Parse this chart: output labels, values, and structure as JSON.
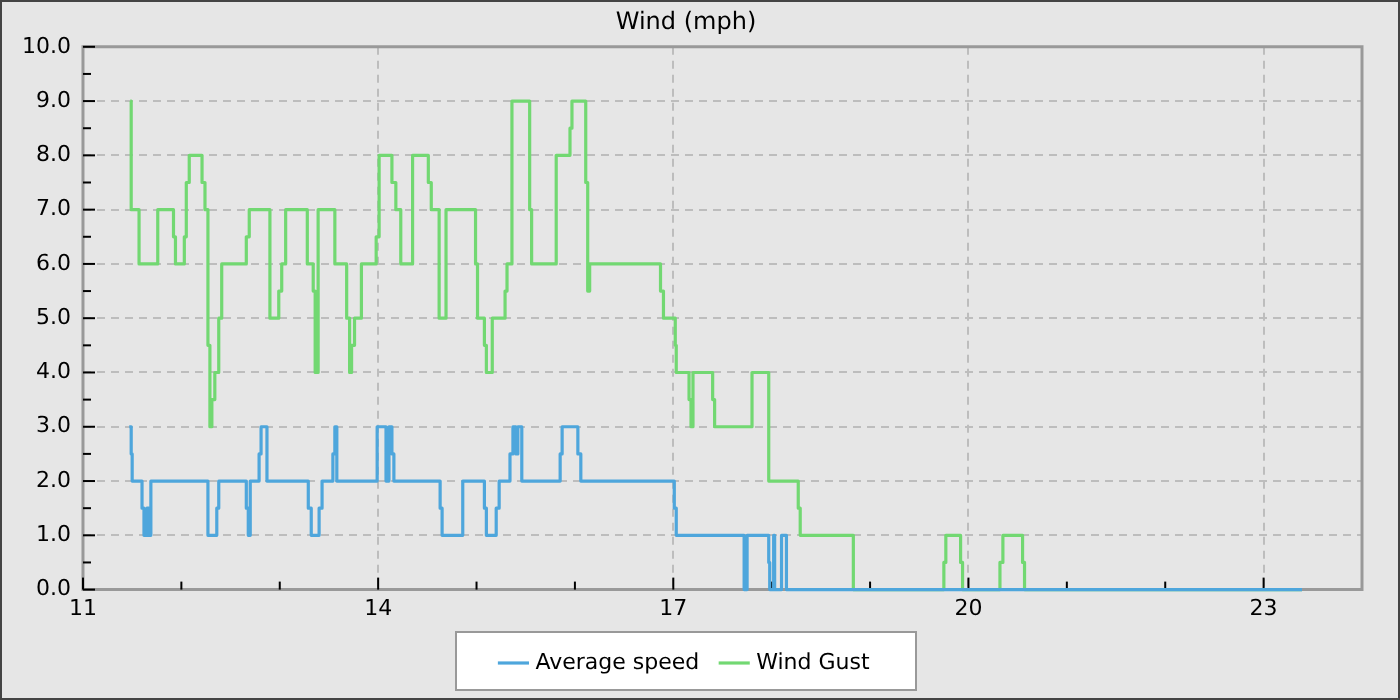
{
  "chart_data": {
    "type": "step",
    "title": "Wind (mph)",
    "xlim": [
      11,
      24
    ],
    "xticks": [
      11,
      {
        "value": 12,
        "label": null
      },
      {
        "value": 13,
        "label": null
      },
      14,
      {
        "value": 15,
        "label": null
      },
      {
        "value": 16,
        "label": null
      },
      17,
      {
        "value": 18,
        "label": null
      },
      {
        "value": 19,
        "label": null
      },
      20,
      {
        "value": 21,
        "label": null
      },
      {
        "value": 22,
        "label": null
      },
      23
    ],
    "ylim": [
      0,
      10
    ],
    "yticks": [
      {
        "value": 0,
        "label": "0.0"
      },
      {
        "value": 0.5,
        "label": null
      },
      {
        "value": 1,
        "label": "1.0"
      },
      {
        "value": 1.5,
        "label": null
      },
      {
        "value": 2,
        "label": "2.0"
      },
      {
        "value": 2.5,
        "label": null
      },
      {
        "value": 3,
        "label": "3.0"
      },
      {
        "value": 3.5,
        "label": null
      },
      {
        "value": 4,
        "label": "4.0"
      },
      {
        "value": 4.5,
        "label": null
      },
      {
        "value": 5,
        "label": "5.0"
      },
      {
        "value": 5.5,
        "label": null
      },
      {
        "value": 6,
        "label": "6.0"
      },
      {
        "value": 6.5,
        "label": null
      },
      {
        "value": 7,
        "label": "7.0"
      },
      {
        "value": 7.5,
        "label": null
      },
      {
        "value": 8,
        "label": "8.0"
      },
      {
        "value": 8.5,
        "label": null
      },
      {
        "value": 9,
        "label": "9.0"
      },
      {
        "value": 9.5,
        "label": null
      },
      {
        "value": 10,
        "label": "10.0"
      }
    ],
    "grid": true,
    "legend": "bottom",
    "marker": "none",
    "line_style": "solid",
    "series": [
      {
        "name": "Average speed",
        "color": "#4ea6dc",
        "x": [
          11.47,
          11.49,
          11.5,
          11.6,
          11.62,
          11.65,
          11.67,
          11.69,
          12.27,
          12.36,
          12.38,
          12.66,
          12.68,
          12.7,
          12.79,
          12.81,
          12.87,
          13.29,
          13.32,
          13.4,
          13.43,
          13.54,
          13.56,
          13.58,
          13.99,
          14.08,
          14.11,
          14.14,
          14.16,
          14.63,
          14.65,
          14.86,
          15.08,
          15.1,
          15.2,
          15.23,
          15.34,
          15.37,
          15.4,
          15.42,
          15.46,
          15.85,
          15.87,
          16.03,
          16.06,
          17.01,
          17.03,
          17.72,
          17.75,
          17.97,
          17.98,
          18.02,
          18.03,
          18.1,
          18.15,
          23.39
        ],
        "values": [
          3,
          2.5,
          2,
          1.5,
          1,
          1.5,
          1,
          2,
          1,
          1.5,
          2,
          1.5,
          1,
          2,
          2.5,
          3,
          2,
          1.5,
          1,
          1.5,
          2,
          2.5,
          3,
          2,
          3,
          2,
          3,
          2.5,
          2,
          1.5,
          1,
          2,
          1.5,
          1,
          1.5,
          2,
          2.5,
          3,
          2.5,
          3,
          2,
          2.5,
          3,
          2.5,
          2,
          1.5,
          1,
          0,
          1,
          0.5,
          0,
          1,
          0,
          1,
          0,
          0
        ]
      },
      {
        "name": "Wind Gust",
        "color": "#72d872",
        "x": [
          11.48,
          11.49,
          11.57,
          11.76,
          11.92,
          11.94,
          12.03,
          12.05,
          12.08,
          12.21,
          12.24,
          12.27,
          12.29,
          12.31,
          12.34,
          12.38,
          12.41,
          12.66,
          12.69,
          12.9,
          12.99,
          13.02,
          13.06,
          13.28,
          13.34,
          13.36,
          13.39,
          13.56,
          13.68,
          13.71,
          13.73,
          13.76,
          13.83,
          13.98,
          14.01,
          14.14,
          14.18,
          14.23,
          14.35,
          14.51,
          14.54,
          14.62,
          14.69,
          14.99,
          15.01,
          15.08,
          15.1,
          15.16,
          15.29,
          15.31,
          15.36,
          15.54,
          15.56,
          15.81,
          15.95,
          15.97,
          16.11,
          16.13,
          16.15,
          16.87,
          16.9,
          17.02,
          17.03,
          17.16,
          17.18,
          17.2,
          17.4,
          17.42,
          17.8,
          17.97,
          18.27,
          18.29,
          18.83,
          19.75,
          19.77,
          19.92,
          19.94,
          20.32,
          20.35,
          20.55,
          20.57,
          23.39
        ],
        "values": [
          9,
          7,
          6,
          7,
          6.5,
          6,
          6.5,
          7.5,
          8,
          7.5,
          7,
          4.5,
          3,
          3.5,
          4,
          5,
          6,
          6.5,
          7,
          5,
          5.5,
          6,
          7,
          6,
          5.5,
          4,
          7,
          6,
          5,
          4,
          4.5,
          5,
          6,
          6.5,
          8,
          7.5,
          7,
          6,
          8,
          7.5,
          7,
          5,
          7,
          6,
          5,
          4.5,
          4,
          5,
          5.5,
          6,
          9,
          7,
          6,
          8,
          8.5,
          9,
          7.5,
          5.5,
          6,
          5.5,
          5,
          4.5,
          4,
          3.5,
          3,
          4,
          3.5,
          3,
          4,
          2,
          1.5,
          1,
          0,
          0.5,
          1,
          0.5,
          0,
          0.5,
          1,
          0.5,
          0,
          0
        ]
      }
    ]
  }
}
